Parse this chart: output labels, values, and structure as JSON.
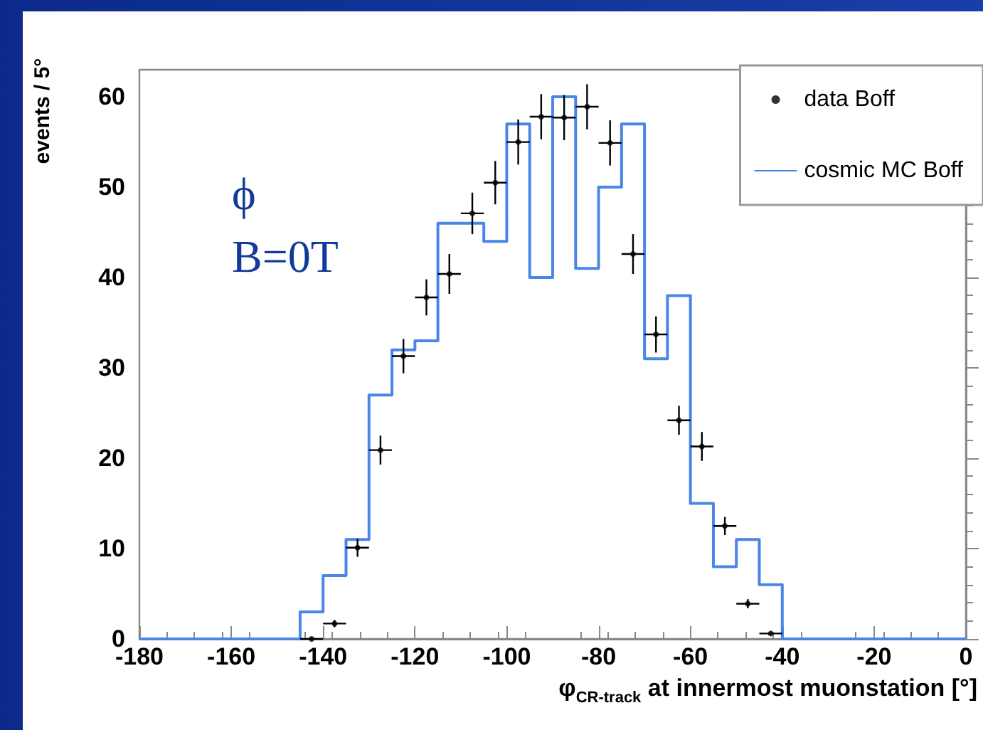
{
  "chart_data": {
    "type": "histogram",
    "xlabel": "φ$_{CR-track}$ at innermost muonstation [°]",
    "ylabel": "events / 5°",
    "annotations": [
      "ϕ",
      "B=0T"
    ],
    "xlim": [
      -180,
      0
    ],
    "xticks": [
      -180,
      -160,
      -140,
      -120,
      -100,
      -80,
      -60,
      -40,
      -20,
      0
    ],
    "ylim": [
      0,
      63
    ],
    "yticks": [
      0,
      10,
      20,
      30,
      40,
      50,
      60
    ],
    "grid": false,
    "legend": "top right",
    "bins": [
      -180,
      -175,
      -170,
      -165,
      -160,
      -155,
      -150,
      -145,
      -140,
      -135,
      -130,
      -125,
      -120,
      -115,
      -110,
      -105,
      -100,
      -95,
      -90,
      -85,
      -80,
      -75,
      -70,
      -65,
      -60,
      -55,
      -50,
      -45,
      -40,
      -35,
      -30,
      -25,
      -20,
      -15,
      -10,
      -5,
      0
    ],
    "series": [
      {
        "name": "data Boff",
        "type": "scatter",
        "color": "#000000",
        "marker": "circle",
        "x": [
          -142.5,
          -137.5,
          -132.5,
          -127.5,
          -122.5,
          -117.5,
          -112.5,
          -107.5,
          -102.5,
          -97.5,
          -92.5,
          -87.5,
          -82.5,
          -77.5,
          -72.5,
          -67.5,
          -62.5,
          -57.5,
          -52.5,
          -47.5,
          -42.5
        ],
        "values": [
          0,
          1.7,
          10.1,
          20.9,
          31.3,
          37.8,
          40.4,
          47.1,
          50.5,
          55,
          57.8,
          57.7,
          58.9,
          54.9,
          42.6,
          33.7,
          24.2,
          21.3,
          12.5,
          3.9,
          0.6
        ],
        "errors": [
          null,
          0.4,
          1,
          1.6,
          1.9,
          2,
          2.2,
          2.3,
          2.4,
          2.5,
          2.5,
          2.5,
          2.5,
          2.5,
          2.2,
          2,
          1.6,
          1.6,
          1,
          0.5,
          null
        ],
        "xerrors": [
          2.5,
          2.5,
          2.5,
          2.5,
          2.5,
          2.5,
          2.5,
          2.5,
          2.5,
          2.5,
          2.5,
          2.5,
          2.5,
          2.5,
          2.5,
          2.5,
          2.5,
          2.5,
          2.5,
          2.5,
          2.5
        ]
      },
      {
        "name": "cosmic MC Boff",
        "color": "#4a86e8",
        "values": [
          0,
          0,
          0,
          0,
          0,
          0,
          0,
          3,
          7,
          11,
          27,
          32,
          33,
          46,
          46,
          44,
          57,
          40,
          60,
          41,
          50,
          57,
          31,
          38,
          15,
          8,
          11,
          6,
          0,
          0,
          0,
          0,
          0,
          0,
          0,
          0
        ]
      }
    ]
  }
}
